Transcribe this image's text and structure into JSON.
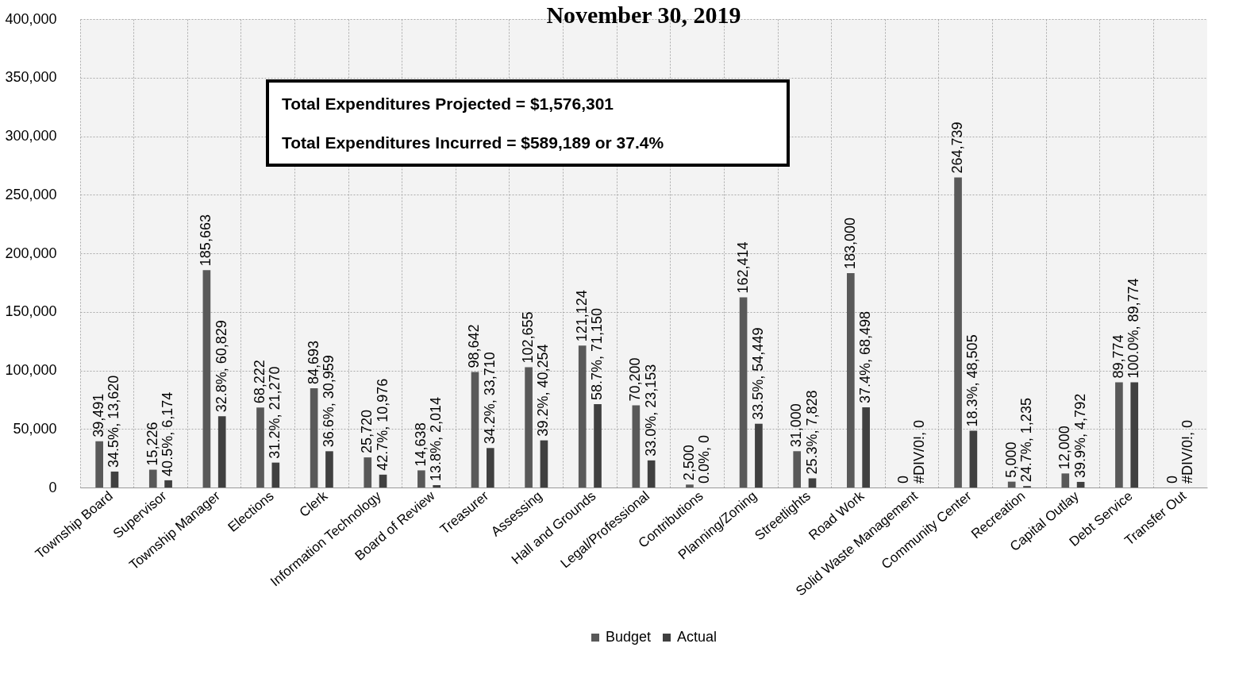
{
  "chart_data": {
    "type": "bar",
    "title": "November 30, 2019",
    "categories": [
      "Township Board",
      "Supervisor",
      "Township Manager",
      "Elections",
      "Clerk",
      "Information Technology",
      "Board of Review",
      "Treasurer",
      "Assessing",
      "Hall and Grounds",
      "Legal/Professional",
      "Contributions",
      "Planning/Zoning",
      "Streetlights",
      "Road Work",
      "Solid Waste Management",
      "Community Center",
      "Recreation",
      "Capital Outlay",
      "Debt Service",
      "Transfer Out"
    ],
    "series": [
      {
        "name": "Budget",
        "color": "#595959",
        "values": [
          39491,
          15226,
          185663,
          68222,
          84693,
          25720,
          14638,
          98642,
          102655,
          121124,
          70200,
          2500,
          162414,
          31000,
          183000,
          0,
          264739,
          5000,
          12000,
          89774,
          0
        ],
        "value_labels": [
          "39,491",
          "15,226",
          "185,663",
          "68,222",
          "84,693",
          "25,720",
          "14,638",
          "98,642",
          "102,655",
          "121,124",
          "70,200",
          "2,500",
          "162,414",
          "31,000",
          "183,000",
          "0",
          "264,739",
          "5,000",
          "12,000",
          "89,774",
          "0"
        ]
      },
      {
        "name": "Actual",
        "color": "#404040",
        "values": [
          13620,
          6174,
          60829,
          21270,
          30959,
          10976,
          2014,
          33710,
          40254,
          71150,
          23153,
          0,
          54449,
          7828,
          68498,
          0,
          48505,
          1235,
          4792,
          89774,
          0
        ],
        "value_labels": [
          "34.5%, 13,620",
          "40.5%, 6,174",
          "32.8%, 60,829",
          "31.2%, 21,270",
          "36.6%, 30,959",
          "42.7%, 10,976",
          "13.8%, 2,014",
          "34.2%, 33,710",
          "39.2%, 40,254",
          "58.7%, 71,150",
          "33.0%, 23,153",
          "0.0%, 0",
          "33.5%, 54,449",
          "25.3%, 7,828",
          "37.4%, 68,498",
          "#DIV/0!, 0",
          "18.3%, 48,505",
          "24.7%, 1,235",
          "39.9%, 4,792",
          "100.0%, 89,774",
          "#DIV/0!, 0"
        ]
      }
    ],
    "ylim": [
      0,
      400000
    ],
    "yticks": [
      0,
      {
        "value": 50000,
        "label": "50,000"
      },
      {
        "value": 100000,
        "label": "100,000"
      },
      {
        "value": 150000,
        "label": "150,000"
      },
      {
        "value": 200000,
        "label": "200,000"
      },
      {
        "value": 250000,
        "label": "250,000"
      },
      {
        "value": 300000,
        "label": "300,000"
      },
      {
        "value": 350000,
        "label": "350,000"
      },
      {
        "value": 400000,
        "label": "400,000"
      }
    ],
    "grid": true,
    "legend": "bottom",
    "annotations": [
      "Total Expenditures Projected = $1,576,301",
      "Total Expenditures Incurred = $589,189 or 37.4%"
    ]
  }
}
